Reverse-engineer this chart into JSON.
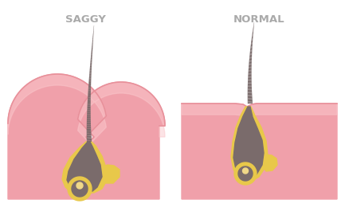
{
  "bg_color": "#ffffff",
  "skin_color": "#f0a0aa",
  "skin_light": "#fac8cc",
  "skin_border": "#e8909a",
  "hair_color": "#7a6b6b",
  "sebum_color": "#e8c84a",
  "title_color": "#aaaaaa",
  "title_saggy": "SAGGY",
  "title_normal": "NORMAL",
  "title_fontsize": 9.5,
  "panel_bg": "#ffffff"
}
